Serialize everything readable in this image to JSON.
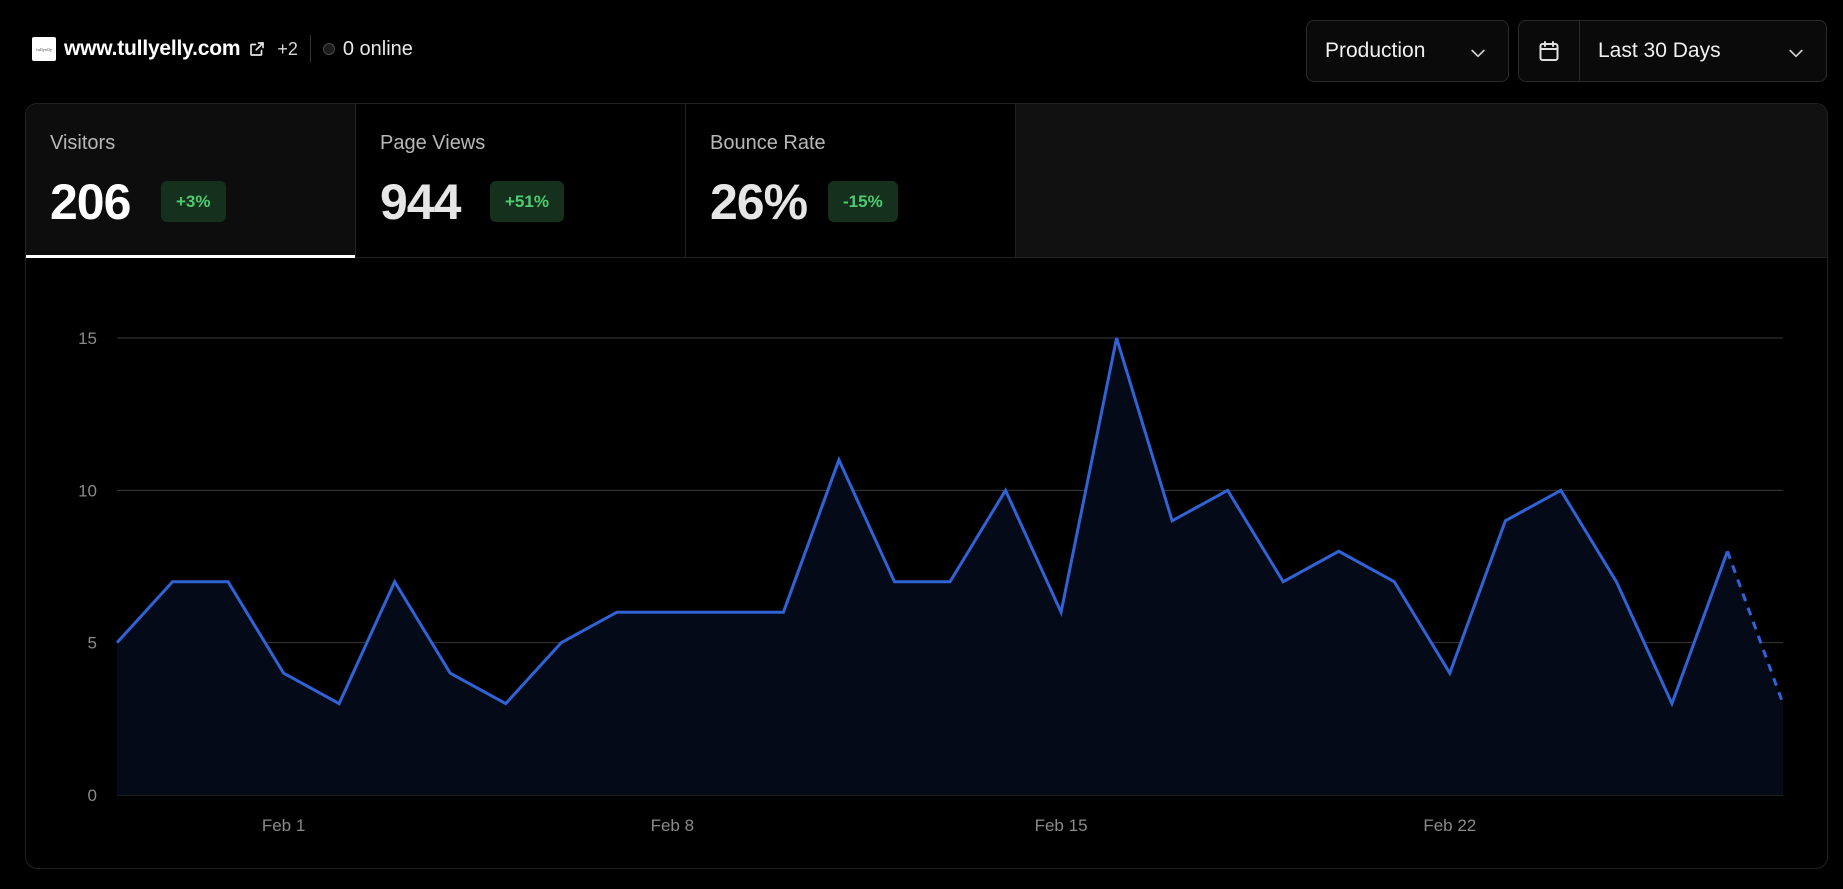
{
  "header": {
    "favicon_text": "tullyelly",
    "domain": "www.tullyelly.com",
    "extra_domains": "+2",
    "online": "0 online"
  },
  "controls": {
    "environment": "Production",
    "date_range": "Last 30 Days"
  },
  "metrics": [
    {
      "label": "Visitors",
      "value": "206",
      "delta": "+3%",
      "active": true
    },
    {
      "label": "Page Views",
      "value": "944",
      "delta": "+51%",
      "active": false
    },
    {
      "label": "Bounce Rate",
      "value": "26%",
      "delta": "-15%",
      "active": false
    }
  ],
  "colors": {
    "line": "#2f63d6",
    "area": "#050a18",
    "delta_bg": "#15301c",
    "delta_text": "#4ecb71",
    "grid": "#3a3a3a"
  },
  "icons": {
    "external": "external-link-icon",
    "calendar": "calendar-icon",
    "chevron": "chevron-down-icon"
  },
  "chart_data": {
    "type": "area",
    "series": [
      {
        "values": [
          5,
          7,
          7,
          4,
          3,
          7,
          4,
          3,
          5,
          6,
          6,
          6,
          6,
          11,
          7,
          7,
          10,
          6,
          15,
          9,
          10,
          7,
          8,
          7,
          4,
          9,
          10,
          7,
          3,
          8,
          3
        ]
      }
    ],
    "dashed_from_index": 29,
    "ylim": [
      0,
      15
    ],
    "y_ticks": [
      0,
      5,
      10,
      15
    ],
    "x_tick_labels": [
      {
        "index": 3,
        "label": "Feb 1"
      },
      {
        "index": 10,
        "label": "Feb 8"
      },
      {
        "index": 17,
        "label": "Feb 15"
      },
      {
        "index": 24,
        "label": "Feb 22"
      }
    ],
    "grid": true
  }
}
